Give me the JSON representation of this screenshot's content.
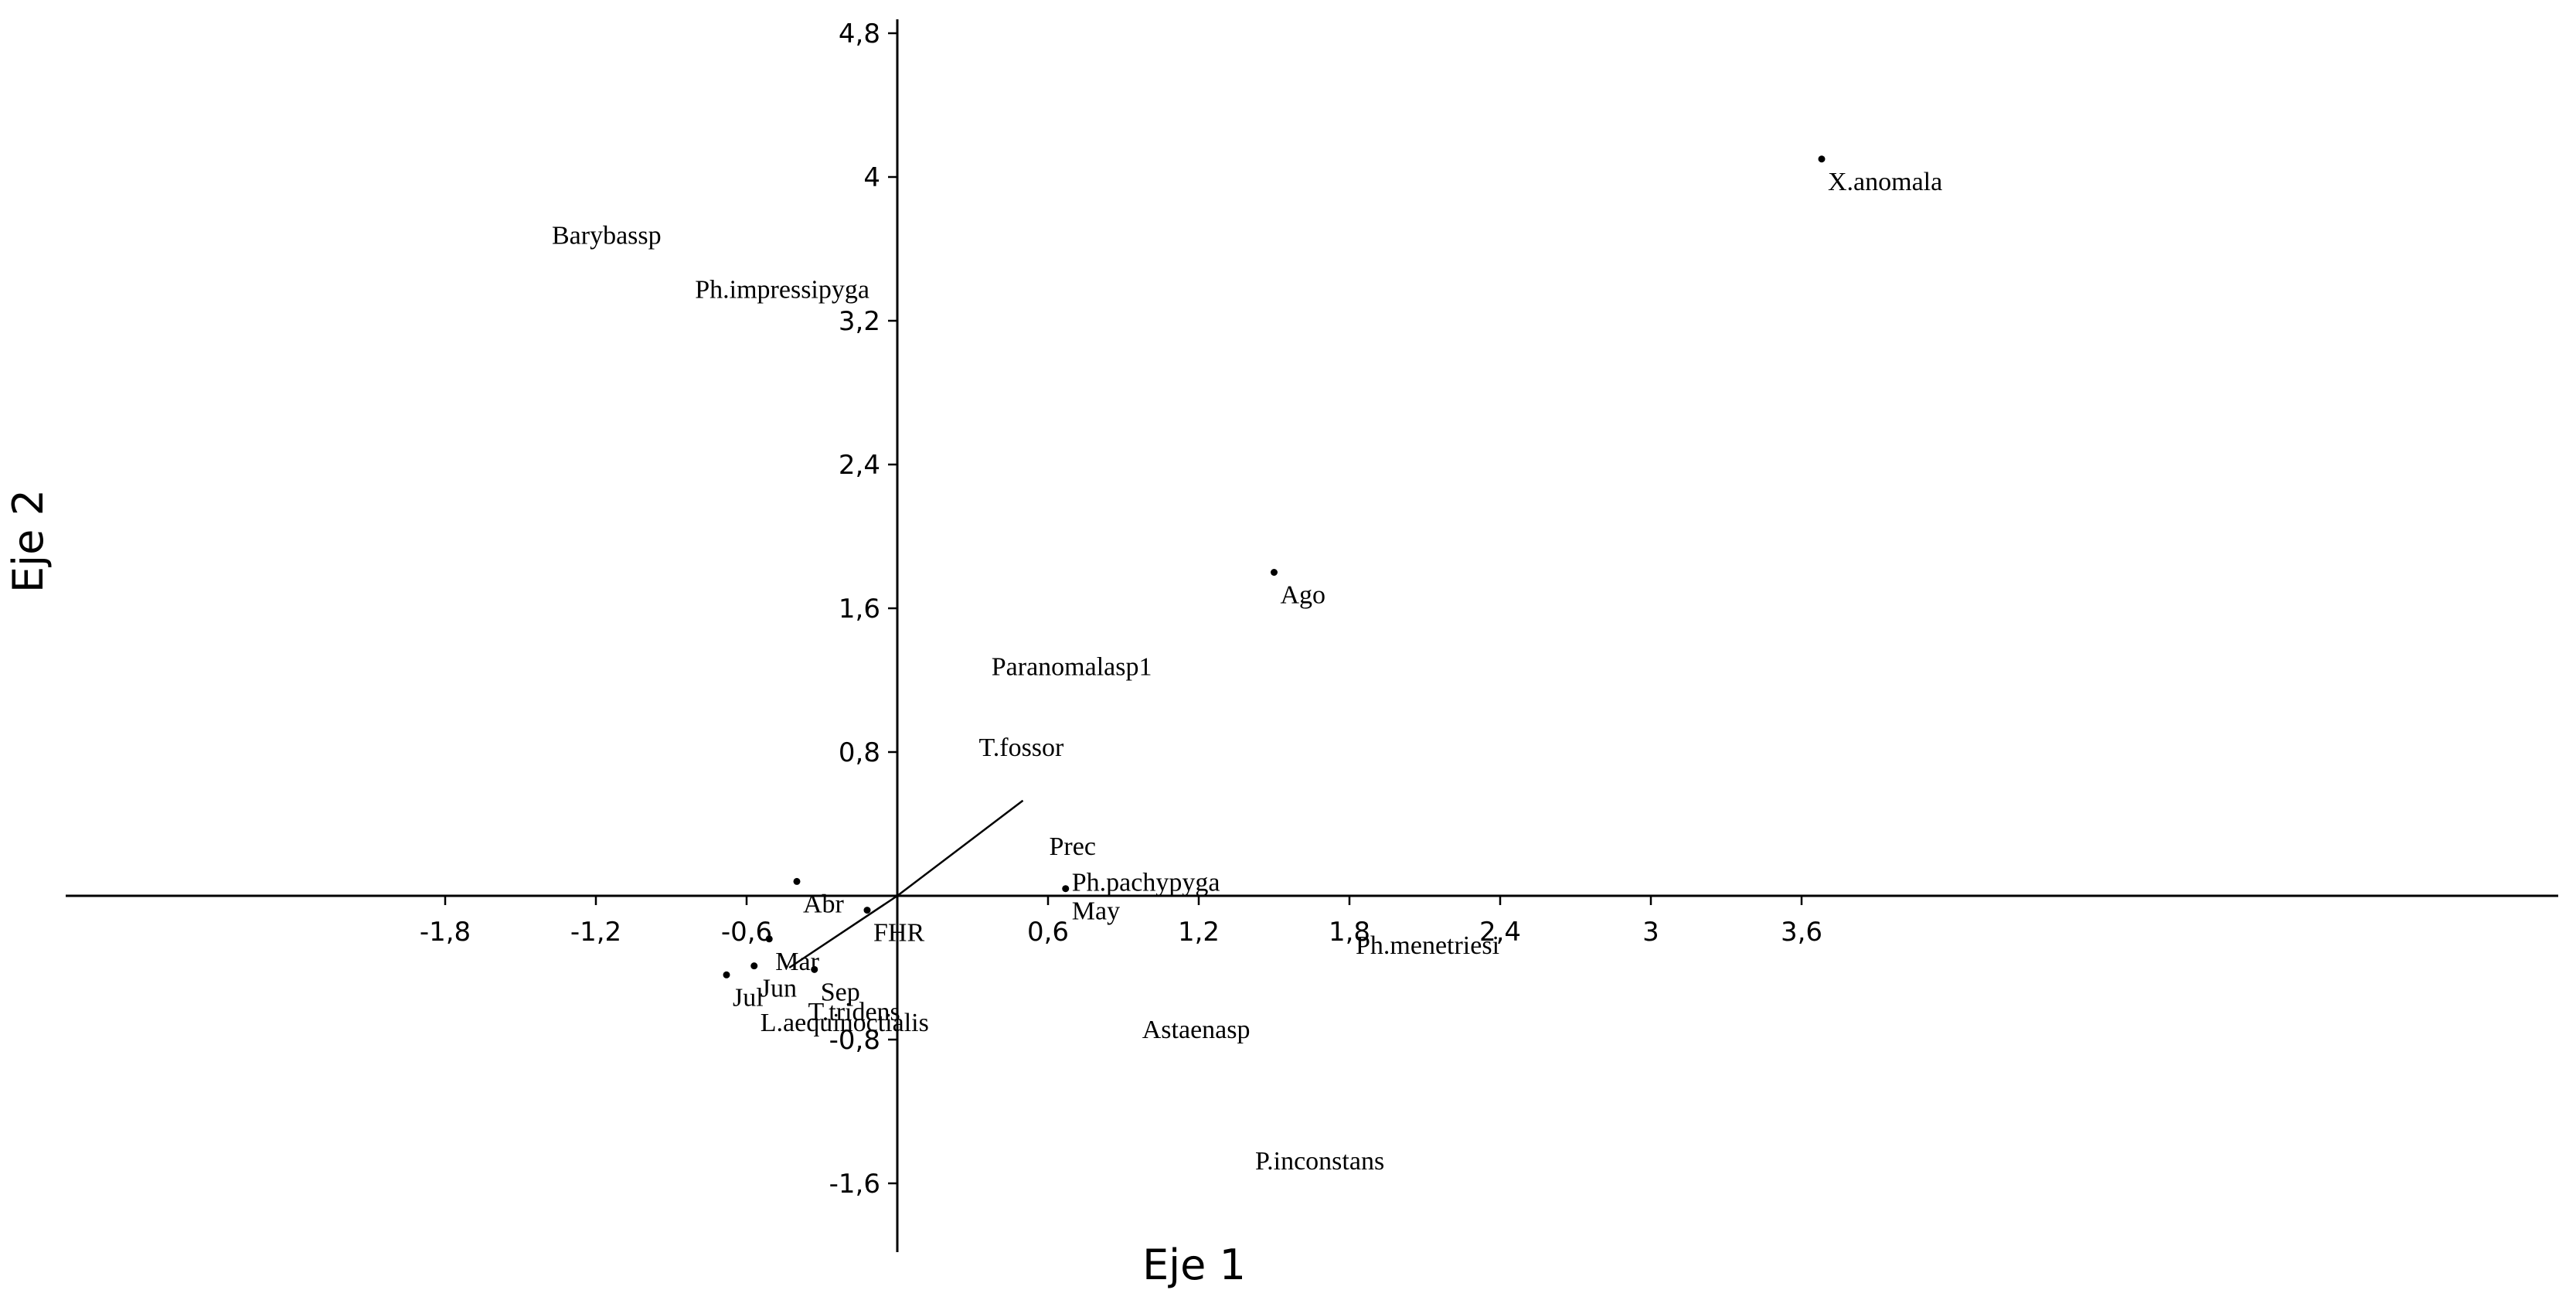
{
  "chart_data": {
    "type": "scatter",
    "xlabel": "Eje 1",
    "ylabel": "Eje 2",
    "xlim": [
      -2.0,
      4.0
    ],
    "ylim": [
      -2.0,
      5.0
    ],
    "xticks": [
      {
        "v": -1.8,
        "label": "-1,8"
      },
      {
        "v": -1.2,
        "label": "-1,2"
      },
      {
        "v": -0.6,
        "label": "-0,6"
      },
      {
        "v": 0.6,
        "label": "0,6"
      },
      {
        "v": 1.2,
        "label": "1,2"
      },
      {
        "v": 1.8,
        "label": "1,8"
      },
      {
        "v": 2.4,
        "label": "2,4"
      },
      {
        "v": 3.0,
        "label": "3"
      },
      {
        "v": 3.6,
        "label": "3,6"
      }
    ],
    "yticks": [
      {
        "v": -1.6,
        "label": "-1,6"
      },
      {
        "v": -0.8,
        "label": "-0,8"
      },
      {
        "v": 0.8,
        "label": "0,8"
      },
      {
        "v": 1.6,
        "label": "1,6"
      },
      {
        "v": 2.4,
        "label": "2,4"
      },
      {
        "v": 3.2,
        "label": "3,2"
      },
      {
        "v": 4.0,
        "label": "4"
      },
      {
        "v": 4.8,
        "label": "4,8"
      }
    ],
    "points": [
      {
        "label": "Abr",
        "x": -0.4,
        "y": 0.08,
        "marker": true
      },
      {
        "label": "Mar",
        "x": -0.51,
        "y": -0.24,
        "marker": true
      },
      {
        "label": "Jun",
        "x": -0.57,
        "y": -0.39,
        "marker": true
      },
      {
        "label": "Jul",
        "x": -0.68,
        "y": -0.44,
        "marker": true
      },
      {
        "label": "Sep",
        "x": -0.33,
        "y": -0.41,
        "marker": true
      },
      {
        "label": "FHR",
        "x": -0.12,
        "y": -0.08,
        "marker": true
      },
      {
        "label": "May",
        "x": 0.67,
        "y": 0.04,
        "marker": true
      },
      {
        "label": "Ago",
        "x": 1.5,
        "y": 1.8,
        "marker": true
      },
      {
        "label": "X.anomala",
        "x": 3.68,
        "y": 4.1,
        "marker": true
      },
      {
        "label": "Barybassp",
        "x": -1.4,
        "y": 3.8,
        "marker": false
      },
      {
        "label": "Ph.impressipyga",
        "x": -0.83,
        "y": 3.5,
        "marker": false
      },
      {
        "label": "Paranomalasp1",
        "x": 0.35,
        "y": 1.4,
        "marker": false
      },
      {
        "label": "T.fossor",
        "x": 0.3,
        "y": 0.95,
        "marker": false
      },
      {
        "label": "Prec",
        "x": 0.58,
        "y": 0.4,
        "marker": false
      },
      {
        "label": "Ph.pachypyga",
        "x": 0.67,
        "y": 0.2,
        "marker": false
      },
      {
        "label": "Ph.menetriesi",
        "x": 1.8,
        "y": -0.15,
        "marker": false
      },
      {
        "label": "Astaenasp",
        "x": 0.95,
        "y": -0.62,
        "marker": false
      },
      {
        "label": "P.inconstans",
        "x": 1.4,
        "y": -1.35,
        "marker": false
      },
      {
        "label": "L.aequinoctialis",
        "x": -0.57,
        "y": -0.58,
        "marker": false
      },
      {
        "label": "T.tridens",
        "x": -0.38,
        "y": -0.52,
        "marker": false
      }
    ],
    "vectors": [
      {
        "name": "Prec",
        "x": 0.5,
        "y": 0.53
      },
      {
        "name": "T",
        "x": -0.43,
        "y": -0.4
      }
    ],
    "grid": false,
    "legend": "none"
  }
}
